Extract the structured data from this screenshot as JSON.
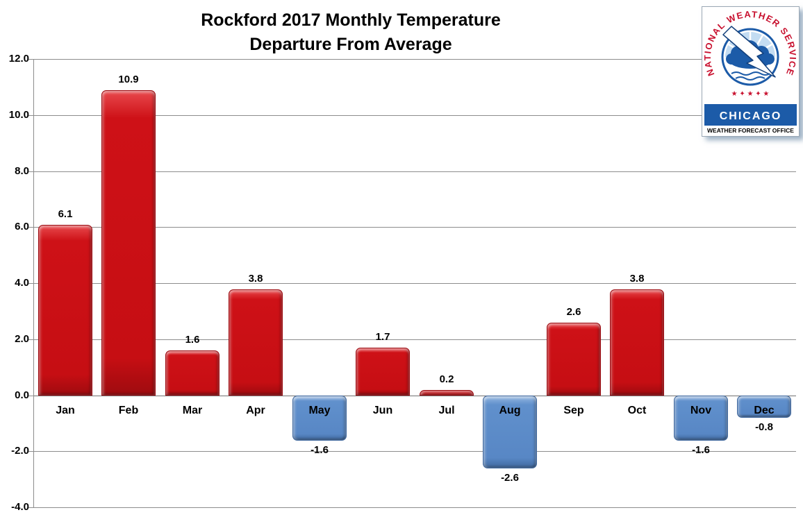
{
  "title": {
    "line1": "Rockford 2017 Monthly Temperature",
    "line2": "Departure From Average"
  },
  "chart_data": {
    "type": "bar",
    "title": "Rockford 2017 Monthly Temperature Departure From Average",
    "categories": [
      "Jan",
      "Feb",
      "Mar",
      "Apr",
      "May",
      "Jun",
      "Jul",
      "Aug",
      "Sep",
      "Oct",
      "Nov",
      "Dec"
    ],
    "values": [
      6.1,
      10.9,
      1.6,
      3.8,
      -1.6,
      1.7,
      0.2,
      -2.6,
      2.6,
      3.8,
      -1.6,
      -0.8
    ],
    "value_labels": [
      "6.1",
      "10.9",
      "1.6",
      "3.8",
      "-1.6",
      "1.7",
      "0.2",
      "-2.6",
      "2.6",
      "3.8",
      "-1.6",
      "-0.8"
    ],
    "xlabel": "",
    "ylabel": "",
    "ylim": [
      -4.0,
      12.0
    ],
    "ytick_step": 2.0,
    "ytick_labels": [
      "12.0",
      "10.0",
      "8.0",
      "6.0",
      "4.0",
      "2.0",
      "0.0",
      "-2.0",
      "-4.0"
    ],
    "grid": true,
    "legend": "none",
    "colors": {
      "positive_bar": "#C60E13",
      "negative_bar": "#5887C5",
      "gridline": "#8C8C8C",
      "text": "#000000"
    }
  },
  "logo": {
    "arc_text": "NATIONAL WEATHER SERVICE",
    "stars": "★ ✦ ★ ✦ ★",
    "city": "CHICAGO",
    "office": "WEATHER FORECAST OFFICE",
    "colors": {
      "red": "#C8102E",
      "blue": "#1C5BA8",
      "light_blue": "#C3DCF2"
    }
  }
}
